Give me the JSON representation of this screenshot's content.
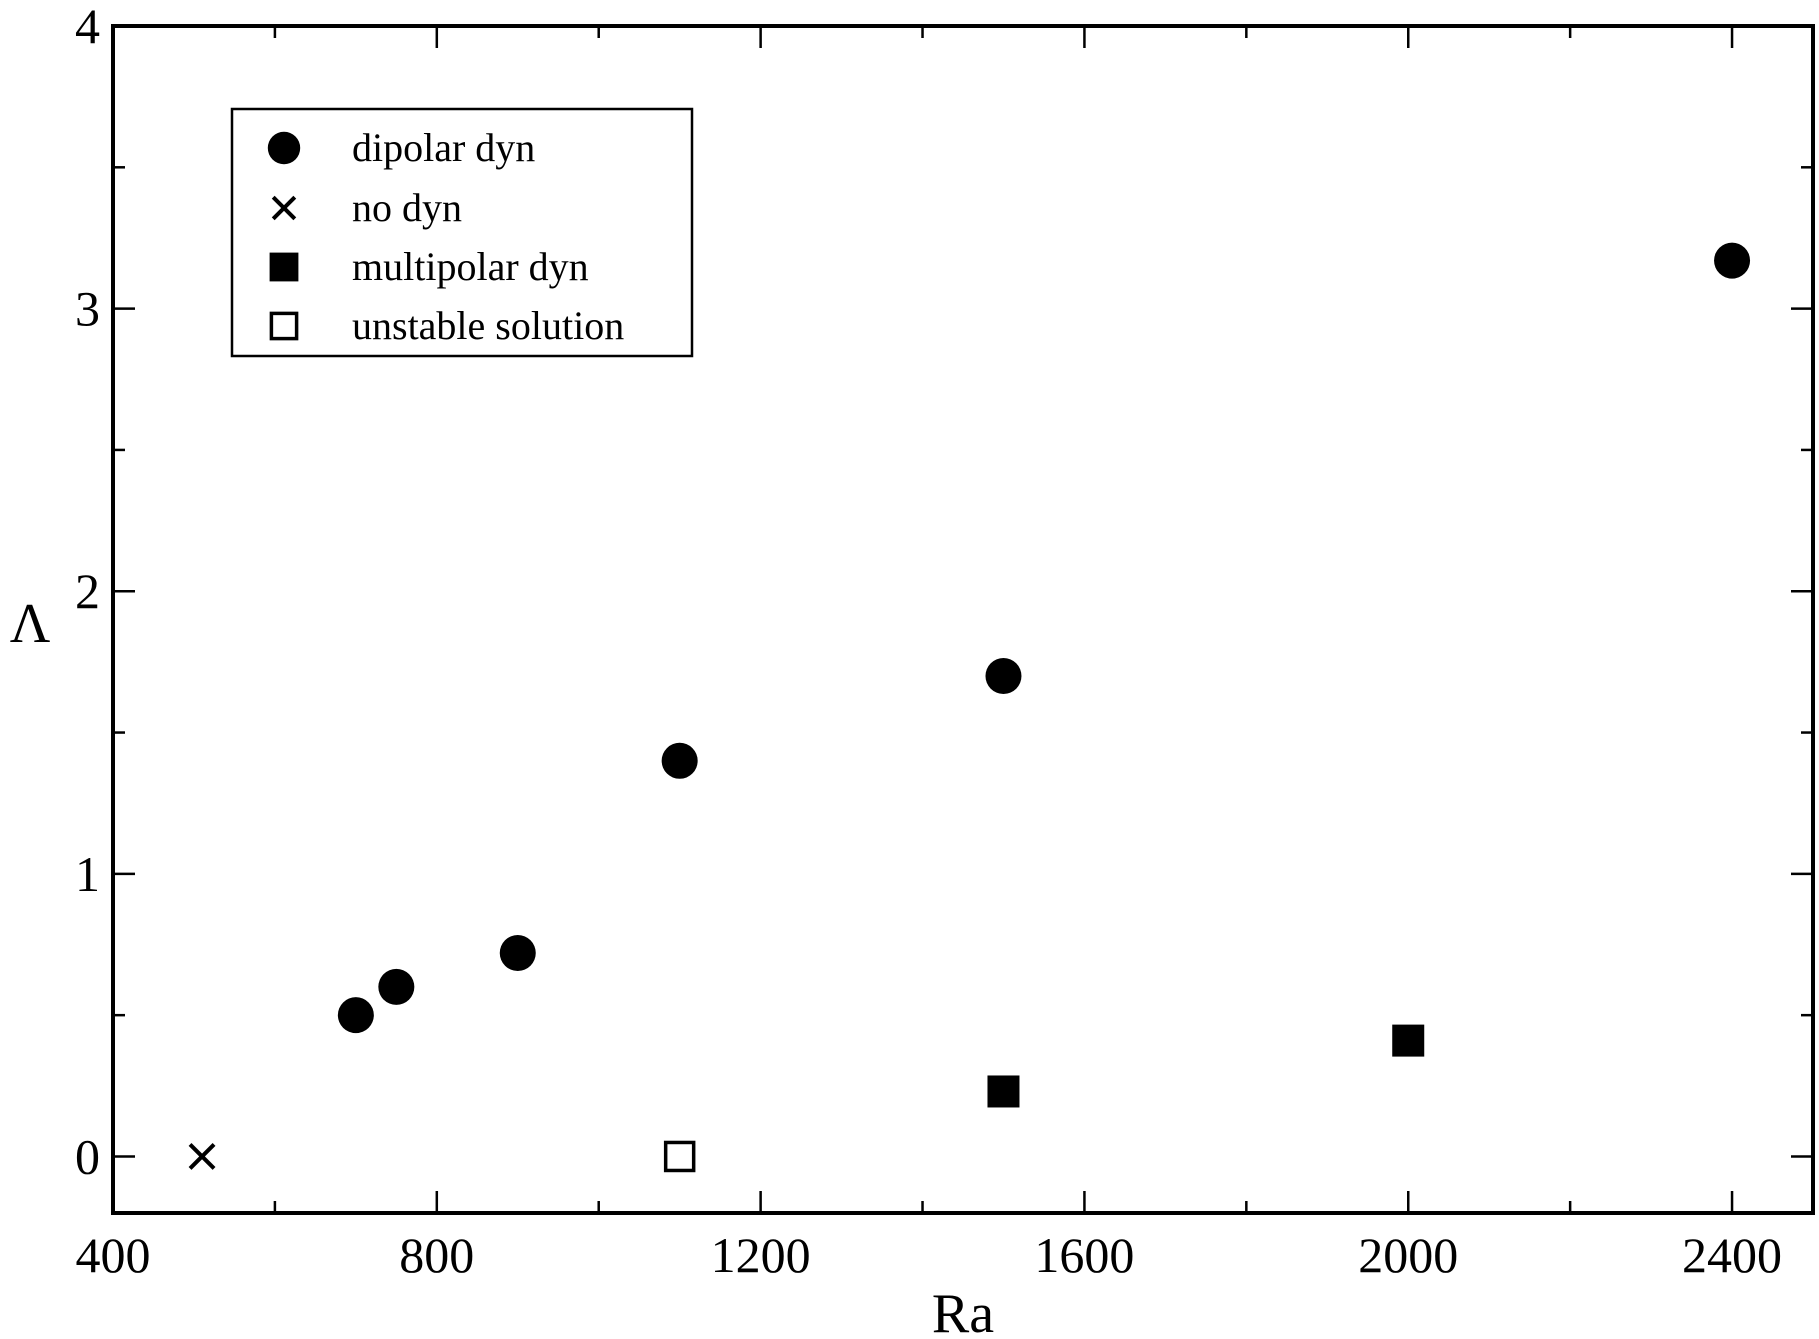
{
  "chart_data": {
    "type": "scatter",
    "title": "",
    "xlabel": "Ra",
    "ylabel": "Λ",
    "xlim": [
      400,
      2500
    ],
    "ylim": [
      -0.2,
      4
    ],
    "x_ticks": [
      400,
      800,
      1200,
      1600,
      2000,
      2400
    ],
    "x_tick_labels": [
      "400",
      "800",
      "1200",
      "1600",
      "2000",
      "2400"
    ],
    "y_ticks": [
      0,
      1,
      2,
      3,
      4
    ],
    "y_tick_labels": [
      "0",
      "1",
      "2",
      "3",
      "4"
    ],
    "x_minor_step": 200,
    "y_minor_step": 0.5,
    "grid": false,
    "legend_position": "top-left",
    "series": [
      {
        "name": "dipolar dyn",
        "marker": "filled-circle",
        "points": [
          [
            700,
            0.5
          ],
          [
            750,
            0.6
          ],
          [
            900,
            0.72
          ],
          [
            1100,
            1.4
          ],
          [
            1500,
            1.7
          ],
          [
            2400,
            3.17
          ]
        ]
      },
      {
        "name": "no dyn",
        "marker": "cross",
        "points": [
          [
            510,
            0.0
          ]
        ]
      },
      {
        "name": "multipolar dyn",
        "marker": "filled-square",
        "points": [
          [
            1500,
            0.23
          ],
          [
            2000,
            0.41
          ]
        ]
      },
      {
        "name": "unstable solution",
        "marker": "open-square",
        "points": [
          [
            1100,
            0.0
          ]
        ]
      }
    ]
  }
}
